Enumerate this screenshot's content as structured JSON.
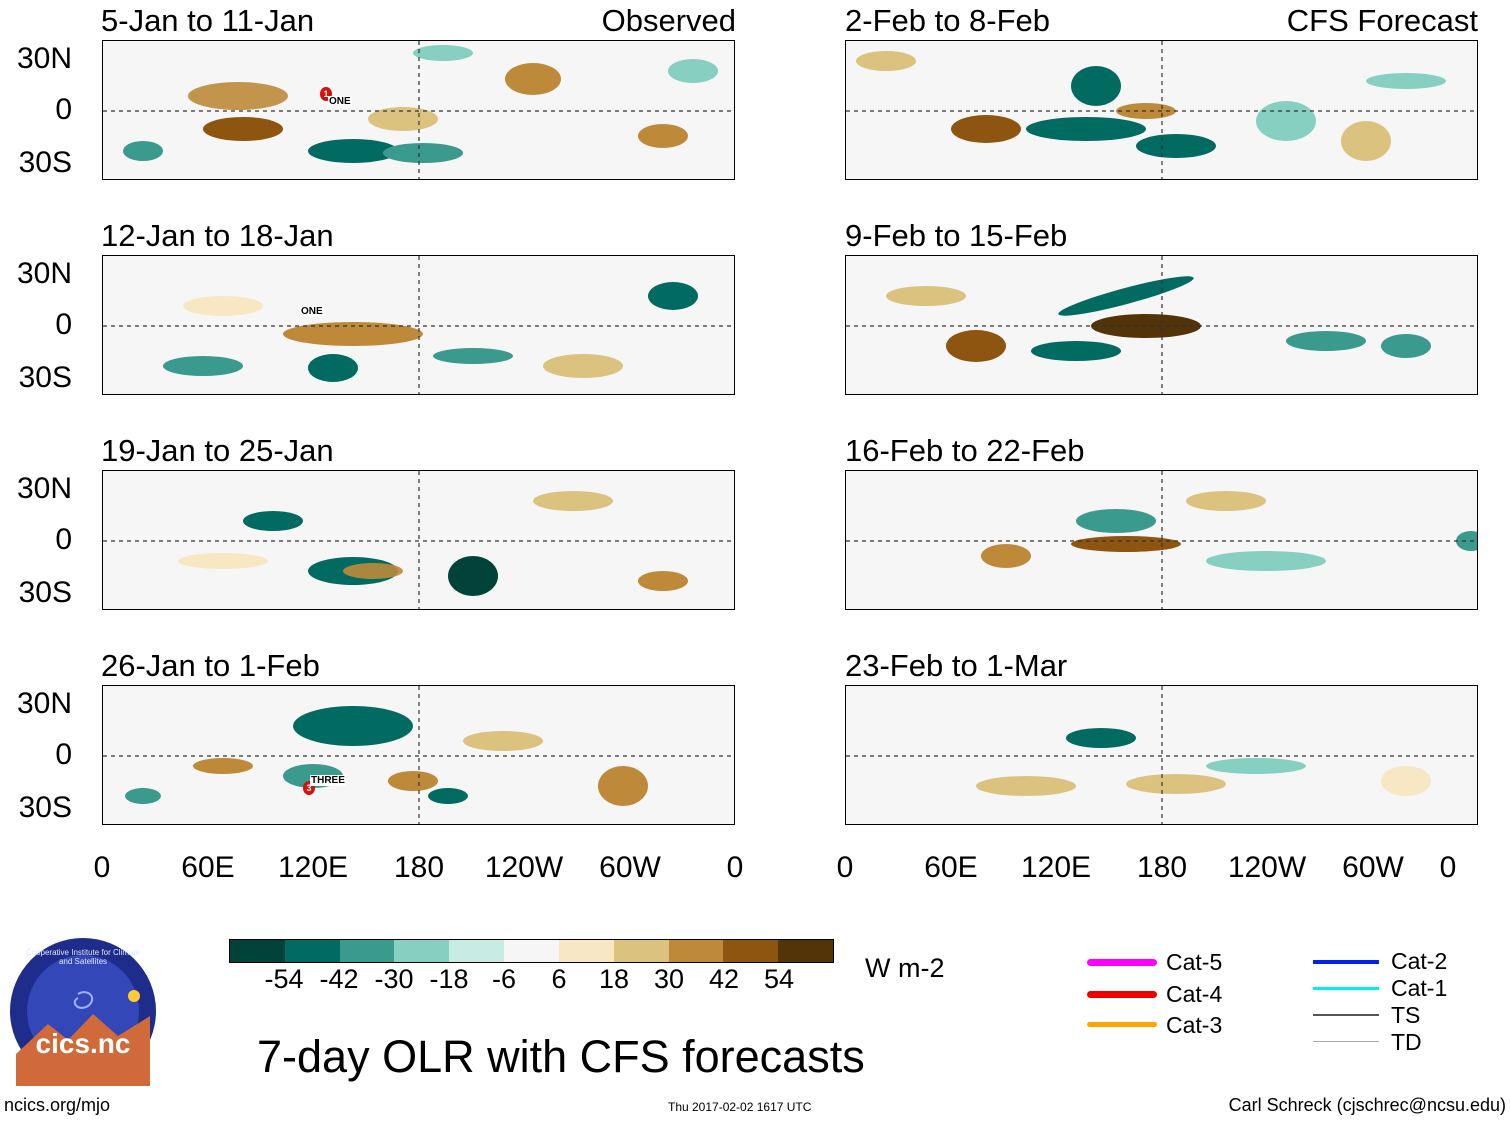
{
  "figure_title": "7-day OLR with CFS forecasts",
  "left_column_tag": "Observed",
  "right_column_tag": "CFS Forecast",
  "panels_left": [
    {
      "title": "5-Jan to 11-Jan",
      "storms": [
        {
          "name": "ONE",
          "cat": "1"
        }
      ]
    },
    {
      "title": "12-Jan to 18-Jan",
      "storms": [
        {
          "name": "ONE",
          "cat": ""
        }
      ]
    },
    {
      "title": "19-Jan to 25-Jan",
      "storms": []
    },
    {
      "title": "26-Jan to 1-Feb",
      "storms": [
        {
          "name": "THREE",
          "cat": "3"
        }
      ]
    }
  ],
  "panels_right": [
    {
      "title": "2-Feb to 8-Feb"
    },
    {
      "title": "9-Feb to 15-Feb"
    },
    {
      "title": "16-Feb to 22-Feb"
    },
    {
      "title": "23-Feb to 1-Mar"
    }
  ],
  "y_axis_labels": [
    "30N",
    "0",
    "30S"
  ],
  "x_axis_labels": [
    "0",
    "60E",
    "120E",
    "180",
    "120W",
    "60W",
    "0"
  ],
  "colorbar": {
    "unit": "W m-2",
    "colors": [
      "#01433a",
      "#016b61",
      "#3b9a8e",
      "#86cfc1",
      "#c8ebe4",
      "#f6f6f6",
      "#f7e8c3",
      "#dcc27f",
      "#be8a3a",
      "#8d5510",
      "#533308"
    ],
    "tick_labels": [
      "-54",
      "-42",
      "-30",
      "-18",
      "-6",
      "6",
      "18",
      "30",
      "42",
      "54"
    ]
  },
  "storm_legend": [
    {
      "label": "Cat-5",
      "color": "#ff00ff"
    },
    {
      "label": "Cat-4",
      "color": "#ee0000"
    },
    {
      "label": "Cat-3",
      "color": "#ffa500"
    },
    {
      "label": "Cat-2",
      "color": "#0022ee"
    },
    {
      "label": "Cat-1",
      "color": "#00eeee"
    },
    {
      "label": "TS",
      "color": "#555555"
    },
    {
      "label": "TD",
      "color": "#aaaaaa"
    }
  ],
  "logo_text": "cics.nc",
  "logo_ring_text": "Cooperative Institute for Climate and Satellites",
  "footer": {
    "left": "ncics.org/mjo",
    "center": "Thu 2017-02-02 1617 UTC",
    "right": "Carl Schreck (cjschrec@ncsu.edu)"
  }
}
